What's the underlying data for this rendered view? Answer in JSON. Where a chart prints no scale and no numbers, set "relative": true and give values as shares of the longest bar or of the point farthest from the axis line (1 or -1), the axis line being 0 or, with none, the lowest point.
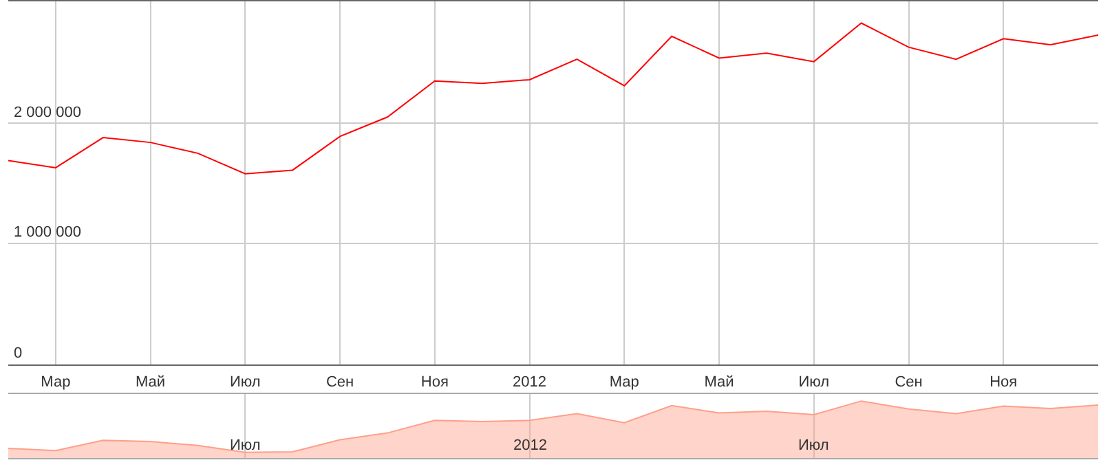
{
  "chart_data": [
    {
      "type": "line",
      "categories": [
        null,
        "Мар",
        null,
        "Май",
        null,
        "Июл",
        null,
        "Сен",
        null,
        "Ноя",
        null,
        "2012",
        null,
        "Мар",
        null,
        "Май",
        null,
        "Июл",
        null,
        "Сен",
        null,
        "Ноя",
        null,
        null
      ],
      "series": [
        {
          "color": "#ff0000",
          "values": [
            1690000,
            1630000,
            1880000,
            1840000,
            1750000,
            1580000,
            1610000,
            1890000,
            2050000,
            2350000,
            2330000,
            2360000,
            2530000,
            2310000,
            2720000,
            2540000,
            2580000,
            2510000,
            2830000,
            2630000,
            2530000,
            2700000,
            2650000,
            2730000
          ]
        }
      ],
      "ylim": [
        0,
        3010000
      ],
      "yticks": [
        {
          "value": 0,
          "label": "0"
        },
        {
          "value": 1000000,
          "label": "1 000 000"
        },
        {
          "value": 2000000,
          "label": "2 000 000"
        }
      ],
      "grid": true,
      "marker": "none",
      "line_style": "solid"
    },
    {
      "type": "area",
      "relative": true,
      "categories": [
        null,
        null,
        null,
        null,
        null,
        "Июл",
        null,
        null,
        null,
        null,
        null,
        "2012",
        null,
        null,
        null,
        null,
        null,
        "Июл",
        null,
        null,
        null,
        null,
        null,
        null
      ],
      "series": [
        {
          "color": "#ff9f8a",
          "values": [
            0.17,
            0.13,
            0.31,
            0.29,
            0.22,
            0.1,
            0.11,
            0.32,
            0.44,
            0.66,
            0.64,
            0.66,
            0.78,
            0.62,
            0.92,
            0.79,
            0.82,
            0.76,
            1.0,
            0.86,
            0.78,
            0.91,
            0.87,
            0.93
          ]
        }
      ],
      "grid": "x",
      "tick_labels": "x"
    }
  ]
}
